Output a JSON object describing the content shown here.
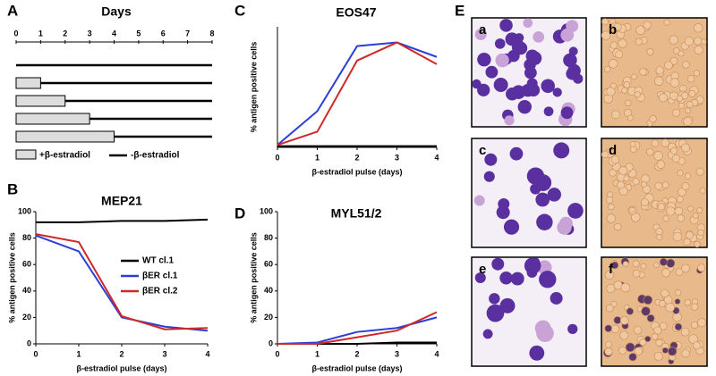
{
  "panel_labels": [
    "A",
    "B",
    "C",
    "D",
    "E"
  ],
  "schematic": {
    "title": "Days",
    "ticks": [
      0,
      1,
      2,
      3,
      4,
      5,
      6,
      7,
      8
    ],
    "pulses": [
      0,
      1,
      2,
      3,
      4
    ],
    "legend": [
      "+β-estradiol",
      "-β-estradiol"
    ]
  },
  "chart_data": [
    {
      "type": "line",
      "title": "MEP21",
      "x_label": "β-estradiol pulse (days)",
      "y_label": "% antigen positive cells",
      "x": [
        0,
        1,
        2,
        3,
        4
      ],
      "xlim": [
        0,
        4
      ],
      "xticks": [
        0,
        1,
        2,
        3,
        4
      ],
      "ylim": [
        0,
        100
      ],
      "yticks": [
        0,
        20,
        40,
        60,
        80,
        100
      ],
      "series": [
        {
          "name": "WT cl.1",
          "color": "#000000",
          "values": [
            92,
            92,
            93,
            93,
            94
          ]
        },
        {
          "name": "βER cl.1",
          "color": "#2b3fd6",
          "values": [
            82,
            70,
            20,
            13,
            10
          ]
        },
        {
          "name": "βER cl.2",
          "color": "#d02828",
          "values": [
            83,
            77,
            21,
            11,
            12
          ]
        }
      ]
    },
    {
      "type": "line",
      "title": "EOS47",
      "x_label": "β-estradiol pulse (days)",
      "y_label": "% antigen positive cells",
      "x": [
        0,
        1,
        2,
        3,
        4
      ],
      "xlim": [
        0,
        4
      ],
      "xticks": [
        0,
        1,
        2,
        3,
        4
      ],
      "ylim": [
        0,
        100
      ],
      "series": [
        {
          "color": "#000000",
          "values": [
            1,
            1,
            1,
            1,
            1
          ]
        },
        {
          "color": "#2b3fd6",
          "values": [
            2,
            30,
            84,
            87,
            75
          ]
        },
        {
          "color": "#d02828",
          "values": [
            2,
            13,
            72,
            87,
            69
          ]
        }
      ]
    },
    {
      "type": "line",
      "title": "MYL51/2",
      "x_label": "β-estradiol pulse (days)",
      "y_label": "% antigen positive cells",
      "x": [
        0,
        1,
        2,
        3,
        4
      ],
      "xlim": [
        0,
        4
      ],
      "xticks": [
        0,
        1,
        2,
        3,
        4
      ],
      "ylim": [
        0,
        100
      ],
      "yticks": [
        0,
        20,
        40,
        60,
        80,
        100
      ],
      "series": [
        {
          "color": "#000000",
          "values": [
            0,
            0,
            0,
            1,
            1
          ]
        },
        {
          "color": "#2b3fd6",
          "values": [
            0,
            1,
            9,
            12,
            20
          ]
        },
        {
          "color": "#d02828",
          "values": [
            0,
            0,
            5,
            10,
            24
          ]
        }
      ]
    }
  ],
  "images": {
    "labels": [
      "a",
      "b",
      "c",
      "d",
      "e",
      "f"
    ]
  }
}
